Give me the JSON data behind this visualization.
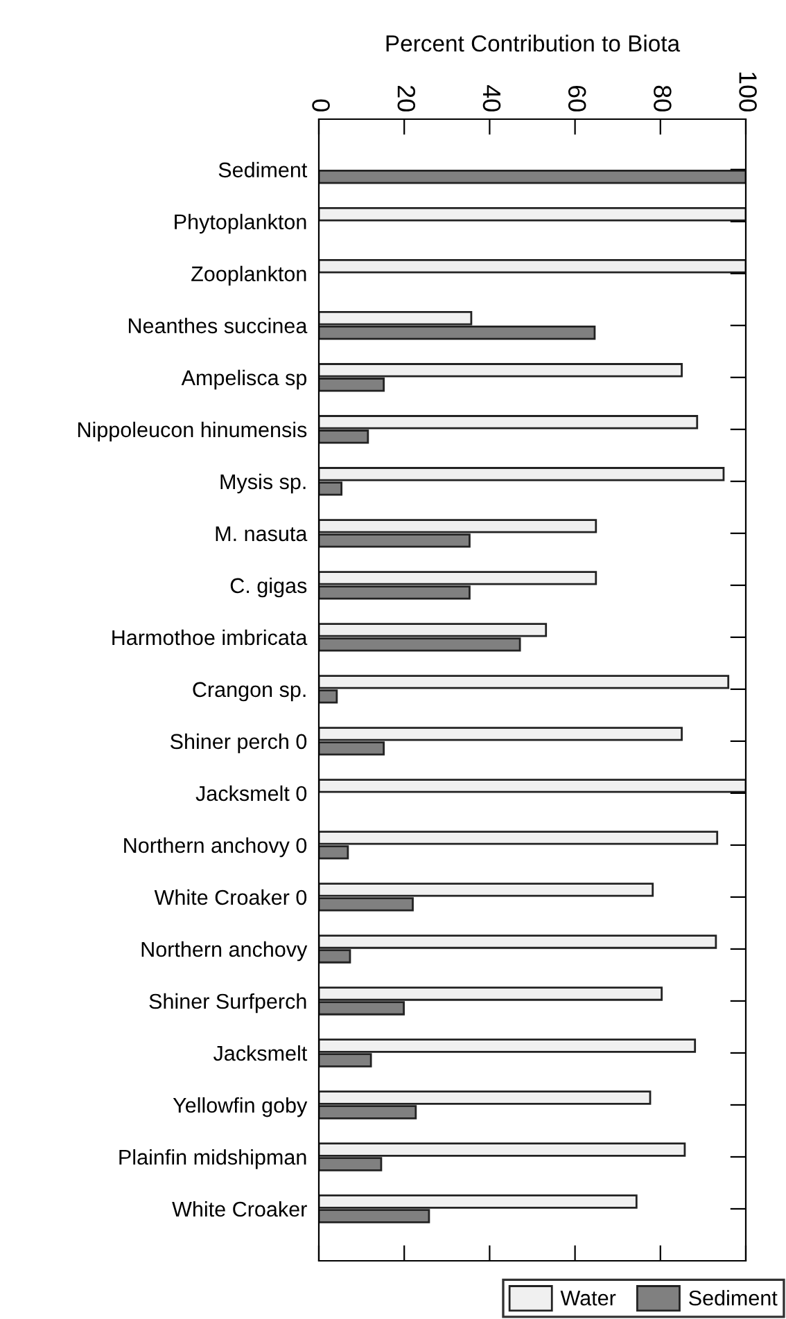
{
  "chart_data": {
    "type": "bar",
    "orientation": "horizontal",
    "xlabel": "Percent Contribution to Biota",
    "categories": [
      "Sediment",
      "Phytoplankton",
      "Zooplankton",
      "Neanthes succinea",
      "Ampelisca sp",
      "Nippoleucon hinumensis",
      "Mysis sp.",
      "M. nasuta",
      "C. gigas",
      "Harmothoe imbricata",
      "Crangon sp.",
      "Shiner perch 0",
      "Jacksmelt 0",
      "Northern anchovy 0",
      "White Croaker 0",
      "Northern anchovy",
      "Shiner Surfperch",
      "Jacksmelt",
      "Yellowfin goby",
      "Plainfin midshipman",
      "White Croaker"
    ],
    "series": [
      {
        "name": "Water",
        "color": "#f0f0f0",
        "values": [
          0,
          100,
          100,
          35.7,
          85.0,
          88.6,
          94.8,
          64.9,
          64.9,
          53.2,
          95.9,
          85.0,
          100,
          93.3,
          78.2,
          93.0,
          80.3,
          88.1,
          77.6,
          85.7,
          74.4
        ]
      },
      {
        "name": "Sediment",
        "color": "#808080",
        "values": [
          100,
          0,
          0,
          64.6,
          15.2,
          11.5,
          5.3,
          35.3,
          35.3,
          47.1,
          4.2,
          15.2,
          0,
          6.8,
          22.0,
          7.3,
          19.9,
          12.2,
          22.7,
          14.6,
          25.8
        ]
      }
    ],
    "xlim": [
      0,
      100
    ],
    "xticks": [
      0,
      20,
      40,
      60,
      80,
      100
    ],
    "legend": "bottom right",
    "grid": false
  }
}
